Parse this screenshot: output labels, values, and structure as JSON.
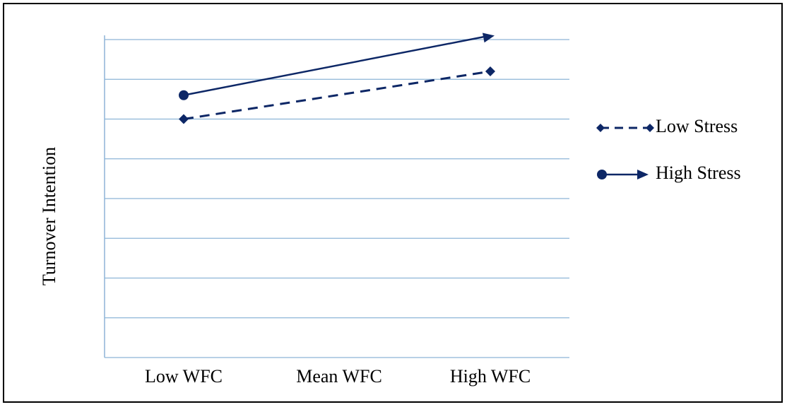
{
  "chart_data": {
    "type": "line",
    "title": "",
    "xlabel": "",
    "ylabel": "Turnover Intention",
    "categories": [
      "Low WFC",
      "Mean WFC",
      "High WFC"
    ],
    "ylim": [
      0,
      8
    ],
    "grid": true,
    "legend_position": "right",
    "series": [
      {
        "name": "Low Stress",
        "x": [
          "Low WFC",
          "High WFC"
        ],
        "values": [
          6.0,
          7.2
        ],
        "line_style": "dashed",
        "marker": "diamond",
        "color": "#0d2766"
      },
      {
        "name": "High Stress",
        "x": [
          "Low WFC",
          "High WFC"
        ],
        "values": [
          6.6,
          8.1
        ],
        "line_style": "solid",
        "marker": "circle-start-arrow-end",
        "color": "#0d2766"
      }
    ]
  },
  "colors": {
    "grid": "#8db4d7",
    "axis": "#8db4d7",
    "series": "#0d2766"
  }
}
